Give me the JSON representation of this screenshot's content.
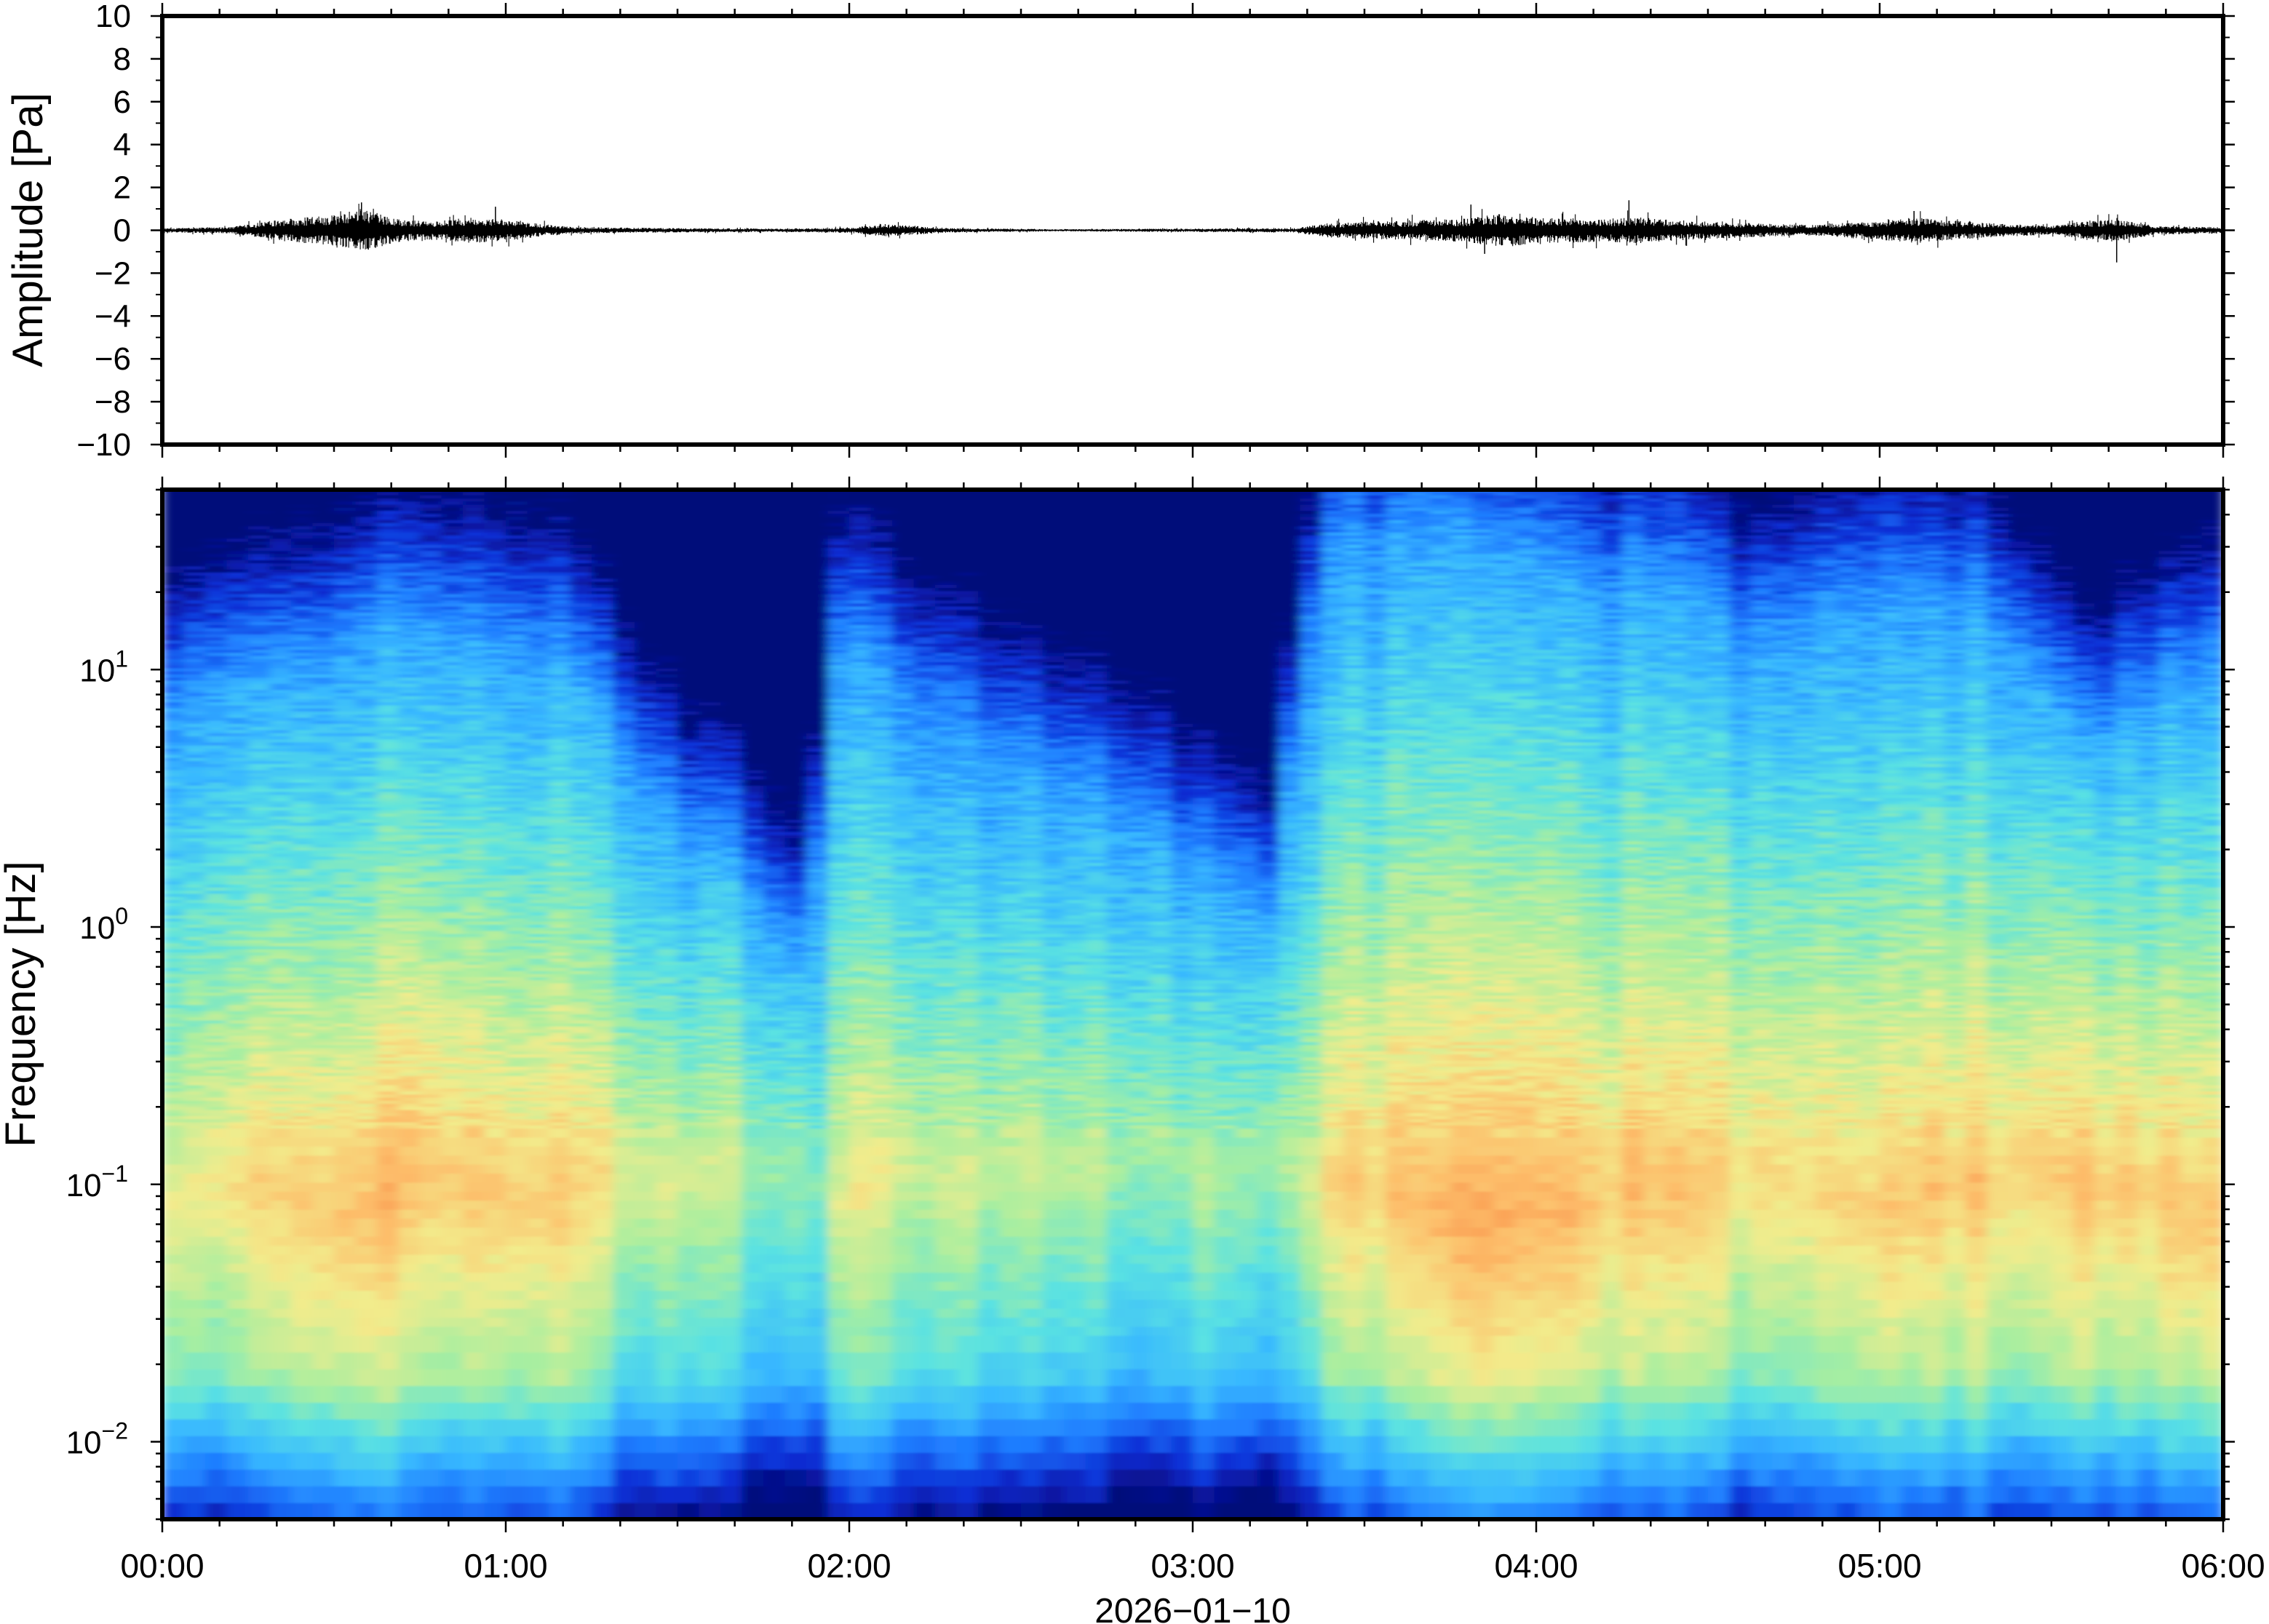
{
  "chart_data": [
    {
      "type": "line",
      "panel": "waveform",
      "ylabel": "Amplitude [Pa]",
      "ylim": [
        -10,
        10
      ],
      "yticks": [
        10,
        8,
        6,
        4,
        2,
        0,
        -2,
        -4,
        -6,
        -8,
        -10
      ],
      "ytick_labels": [
        "10",
        "8",
        "6",
        "4",
        "2",
        "0",
        "−2",
        "−4",
        "−6",
        "−8",
        "−10"
      ],
      "xlim_hours": [
        0,
        6
      ],
      "line_color": "#000000",
      "envelope": {
        "x_hours": [
          0.0,
          0.2,
          0.3,
          0.4,
          0.5,
          0.58,
          0.7,
          0.8,
          0.9,
          1.0,
          1.1,
          1.2,
          1.5,
          1.8,
          2.0,
          2.1,
          2.2,
          2.3,
          2.6,
          3.0,
          3.3,
          3.4,
          3.6,
          3.8,
          3.9,
          4.0,
          4.2,
          4.3,
          4.5,
          4.8,
          5.0,
          5.1,
          5.3,
          5.5,
          5.6,
          5.7,
          5.8,
          6.0
        ],
        "amplitude_pa": [
          0.1,
          0.15,
          0.4,
          0.6,
          0.7,
          1.0,
          0.5,
          0.45,
          0.6,
          0.5,
          0.3,
          0.15,
          0.1,
          0.08,
          0.12,
          0.3,
          0.2,
          0.1,
          0.05,
          0.08,
          0.1,
          0.35,
          0.45,
          0.55,
          0.8,
          0.6,
          0.55,
          0.6,
          0.4,
          0.25,
          0.45,
          0.6,
          0.35,
          0.2,
          0.45,
          0.5,
          0.2,
          0.15
        ]
      },
      "peaks": [
        {
          "x_hours": 0.58,
          "y_pa": 1.3
        },
        {
          "x_hours": 0.6,
          "y_pa": -0.9
        },
        {
          "x_hours": 0.97,
          "y_pa": 1.1
        },
        {
          "x_hours": 3.81,
          "y_pa": 1.2
        },
        {
          "x_hours": 3.85,
          "y_pa": -1.1
        },
        {
          "x_hours": 4.27,
          "y_pa": 1.4
        },
        {
          "x_hours": 5.1,
          "y_pa": 0.9
        },
        {
          "x_hours": 5.69,
          "y_pa": -1.5
        }
      ]
    },
    {
      "type": "heatmap",
      "panel": "spectrogram",
      "ylabel": "Frequency [Hz]",
      "yscale": "log",
      "ylim_hz": [
        0.005,
        50
      ],
      "yticks": [
        {
          "base": "10",
          "exp": "1",
          "value": 10
        },
        {
          "base": "10",
          "exp": "0",
          "value": 1
        },
        {
          "base": "10",
          "exp": "−1",
          "value": 0.1
        },
        {
          "base": "10",
          "exp": "−2",
          "value": 0.01
        }
      ],
      "xlim_hours": [
        0,
        6
      ],
      "xticks": [
        "00:00",
        "01:00",
        "02:00",
        "03:00",
        "04:00",
        "05:00",
        "06:00"
      ],
      "xlabel": "2026−01−10",
      "colormap": [
        "#05087a",
        "#0a2fd6",
        "#1f7dff",
        "#38b8ff",
        "#5ae2e2",
        "#a8eea0",
        "#f2ec8c",
        "#fdbd6a",
        "#f77b3a"
      ],
      "time_hours": [
        0.0,
        0.15,
        0.3,
        0.45,
        0.6,
        0.75,
        0.9,
        1.05,
        1.2,
        1.35,
        1.5,
        1.65,
        1.8,
        1.9,
        1.95,
        2.05,
        2.15,
        2.3,
        2.5,
        2.7,
        2.9,
        3.0,
        3.15,
        3.25,
        3.3,
        3.4,
        3.55,
        3.7,
        3.85,
        4.0,
        4.15,
        4.3,
        4.45,
        4.6,
        4.8,
        5.0,
        5.15,
        5.3,
        5.45,
        5.6,
        5.75,
        5.9,
        6.0
      ],
      "max_intensity_freq_hz": [
        0.07,
        0.1,
        0.1,
        0.08,
        0.08,
        0.12,
        0.1,
        0.09,
        0.1,
        0.12,
        0.1,
        0.12,
        0.12,
        0.1,
        0.08,
        0.1,
        0.12,
        0.1,
        0.12,
        0.12,
        0.15,
        0.1,
        0.12,
        0.15,
        0.1,
        0.1,
        0.1,
        0.08,
        0.07,
        0.08,
        0.08,
        0.1,
        0.1,
        0.12,
        0.1,
        0.08,
        0.1,
        0.1,
        0.12,
        0.1,
        0.1,
        0.08,
        0.07
      ],
      "peak_power_level": [
        0.72,
        0.75,
        0.82,
        0.85,
        0.9,
        0.88,
        0.83,
        0.85,
        0.82,
        0.72,
        0.7,
        0.68,
        0.6,
        0.55,
        0.66,
        0.75,
        0.72,
        0.7,
        0.68,
        0.66,
        0.6,
        0.64,
        0.66,
        0.6,
        0.7,
        0.8,
        0.82,
        0.86,
        0.9,
        0.88,
        0.84,
        0.86,
        0.84,
        0.8,
        0.78,
        0.84,
        0.86,
        0.84,
        0.82,
        0.84,
        0.82,
        0.84,
        0.86
      ],
      "high_freq_cutoff_hz": [
        6,
        8,
        9,
        10,
        14,
        14,
        12,
        12,
        9,
        4,
        2,
        1.5,
        0.7,
        0.5,
        10,
        12,
        8,
        6,
        4,
        3,
        2,
        1.5,
        1.2,
        0.8,
        6,
        30,
        30,
        35,
        30,
        25,
        20,
        22,
        18,
        12,
        14,
        20,
        18,
        16,
        8,
        4,
        6,
        8,
        10
      ]
    }
  ]
}
